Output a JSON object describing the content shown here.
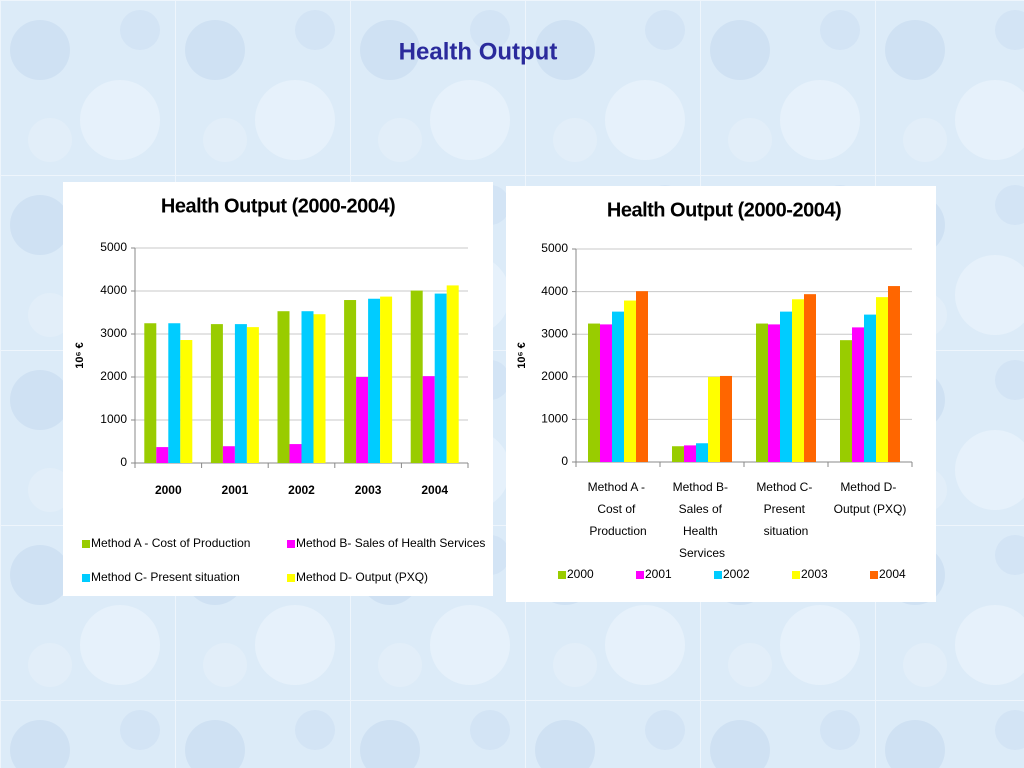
{
  "title": "Health Output",
  "chart_data": [
    {
      "type": "bar",
      "title": "Health Output (2000-2004)",
      "ylabel": "10⁶ €",
      "categories": [
        "2000",
        "2001",
        "2002",
        "2003",
        "2004"
      ],
      "series": [
        {
          "name": "Method A - Cost of Production",
          "color": "#99cc00",
          "values": [
            3250,
            3230,
            3530,
            3790,
            4010
          ]
        },
        {
          "name": "Method B- Sales of Health Services",
          "color": "#ff00ff",
          "values": [
            370,
            390,
            440,
            2000,
            2020
          ]
        },
        {
          "name": "Method C- Present situation",
          "color": "#00ccff",
          "values": [
            3250,
            3230,
            3530,
            3820,
            3940
          ]
        },
        {
          "name": "Method D- Output (PXQ)",
          "color": "#ffff00",
          "values": [
            2860,
            3160,
            3460,
            3870,
            4130
          ]
        }
      ],
      "ylim": [
        0,
        5000
      ],
      "yticks": [
        0,
        1000,
        2000,
        3000,
        4000,
        5000
      ],
      "grid": true,
      "legend": "bottom"
    },
    {
      "type": "bar",
      "title": "Health Output (2000-2004)",
      "ylabel": "10⁶ €",
      "categories": [
        "Method A - Cost of Production",
        "Method B- Sales of Health Services",
        "Method C- Present situation",
        "Method D- Output (PXQ)"
      ],
      "series": [
        {
          "name": "2000",
          "color": "#99cc00",
          "values": [
            3250,
            370,
            3250,
            2860
          ]
        },
        {
          "name": "2001",
          "color": "#ff00ff",
          "values": [
            3230,
            390,
            3230,
            3160
          ]
        },
        {
          "name": "2002",
          "color": "#00ccff",
          "values": [
            3530,
            440,
            3530,
            3460
          ]
        },
        {
          "name": "2003",
          "color": "#ffff00",
          "values": [
            3790,
            2000,
            3820,
            3870
          ]
        },
        {
          "name": "2004",
          "color": "#ff6600",
          "values": [
            4010,
            2020,
            3940,
            4130
          ]
        }
      ],
      "ylim": [
        0,
        5000
      ],
      "yticks": [
        0,
        1000,
        2000,
        3000,
        4000,
        5000
      ],
      "grid": true,
      "legend": "bottom"
    }
  ]
}
